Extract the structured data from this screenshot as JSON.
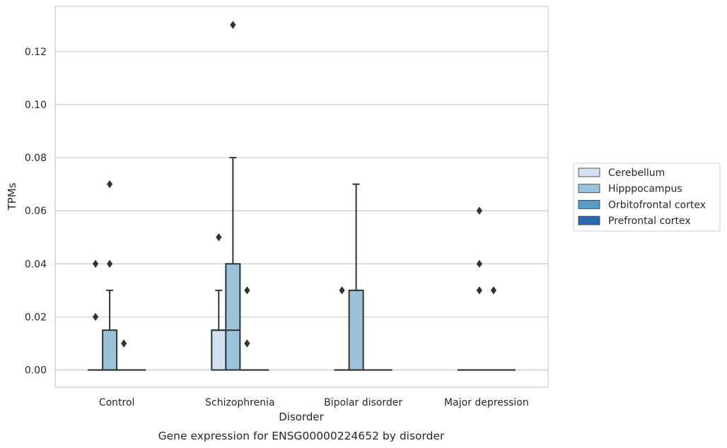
{
  "chart_data": {
    "type": "box",
    "title": "",
    "caption": "Gene expression for ENSG00000224652 by disorder",
    "xlabel": "Disorder",
    "ylabel": "TPMs",
    "ylim": [
      -0.0065,
      0.137
    ],
    "yticks": [
      0.0,
      0.02,
      0.04,
      0.06,
      0.08,
      0.1,
      0.12
    ],
    "ytick_labels": [
      "0.00",
      "0.02",
      "0.04",
      "0.06",
      "0.08",
      "0.10",
      "0.12"
    ],
    "grid": "horizontal",
    "legend_position": "right",
    "categories": [
      "Control",
      "Schizophrenia",
      "Bipolar disorder",
      "Major depression"
    ],
    "series": [
      {
        "name": "Cerebellum",
        "color": "#d0e1f2",
        "boxes": [
          {
            "q1": 0.0,
            "median": 0.0,
            "q3": 0.0,
            "whisker_low": 0.0,
            "whisker_high": 0.0,
            "outliers": [
              0.02,
              0.04
            ]
          },
          {
            "q1": 0.0,
            "median": 0.015,
            "q3": 0.015,
            "whisker_low": 0.0,
            "whisker_high": 0.03,
            "outliers": [
              0.05
            ]
          },
          {
            "q1": 0.0,
            "median": 0.0,
            "q3": 0.0,
            "whisker_low": 0.0,
            "whisker_high": 0.0,
            "outliers": [
              0.03
            ]
          },
          {
            "q1": 0.0,
            "median": 0.0,
            "q3": 0.0,
            "whisker_low": 0.0,
            "whisker_high": 0.0,
            "outliers": []
          }
        ]
      },
      {
        "name": "Hipppocampus",
        "color": "#9ac3da",
        "boxes": [
          {
            "q1": 0.0,
            "median": 0.0,
            "q3": 0.015,
            "whisker_low": 0.0,
            "whisker_high": 0.03,
            "outliers": [
              0.04,
              0.07
            ]
          },
          {
            "q1": 0.0,
            "median": 0.015,
            "q3": 0.04,
            "whisker_low": 0.0,
            "whisker_high": 0.08,
            "outliers": [
              0.13
            ]
          },
          {
            "q1": 0.0,
            "median": 0.0,
            "q3": 0.03,
            "whisker_low": 0.0,
            "whisker_high": 0.07,
            "outliers": []
          },
          {
            "q1": 0.0,
            "median": 0.0,
            "q3": 0.0,
            "whisker_low": 0.0,
            "whisker_high": 0.0,
            "outliers": [
              0.03,
              0.04,
              0.06
            ]
          }
        ]
      },
      {
        "name": "Orbitofrontal cortex",
        "color": "#5a9bc6",
        "boxes": [
          {
            "q1": 0.0,
            "median": 0.0,
            "q3": 0.0,
            "whisker_low": 0.0,
            "whisker_high": 0.0,
            "outliers": [
              0.01
            ]
          },
          {
            "q1": 0.0,
            "median": 0.0,
            "q3": 0.0,
            "whisker_low": 0.0,
            "whisker_high": 0.0,
            "outliers": [
              0.01,
              0.03
            ]
          },
          {
            "q1": 0.0,
            "median": 0.0,
            "q3": 0.0,
            "whisker_low": 0.0,
            "whisker_high": 0.0,
            "outliers": []
          },
          {
            "q1": 0.0,
            "median": 0.0,
            "q3": 0.0,
            "whisker_low": 0.0,
            "whisker_high": 0.0,
            "outliers": [
              0.03
            ]
          }
        ]
      },
      {
        "name": "Prefrontal cortex",
        "color": "#2a6aad",
        "boxes": [
          {
            "q1": 0.0,
            "median": 0.0,
            "q3": 0.0,
            "whisker_low": 0.0,
            "whisker_high": 0.0,
            "outliers": []
          },
          {
            "q1": 0.0,
            "median": 0.0,
            "q3": 0.0,
            "whisker_low": 0.0,
            "whisker_high": 0.0,
            "outliers": []
          },
          {
            "q1": 0.0,
            "median": 0.0,
            "q3": 0.0,
            "whisker_low": 0.0,
            "whisker_high": 0.0,
            "outliers": []
          },
          {
            "q1": 0.0,
            "median": 0.0,
            "q3": 0.0,
            "whisker_low": 0.0,
            "whisker_high": 0.0,
            "outliers": []
          }
        ]
      }
    ]
  },
  "style": {
    "line_color": "#333333",
    "grid_color": "#cccccc",
    "frame_color": "#cccccc"
  }
}
